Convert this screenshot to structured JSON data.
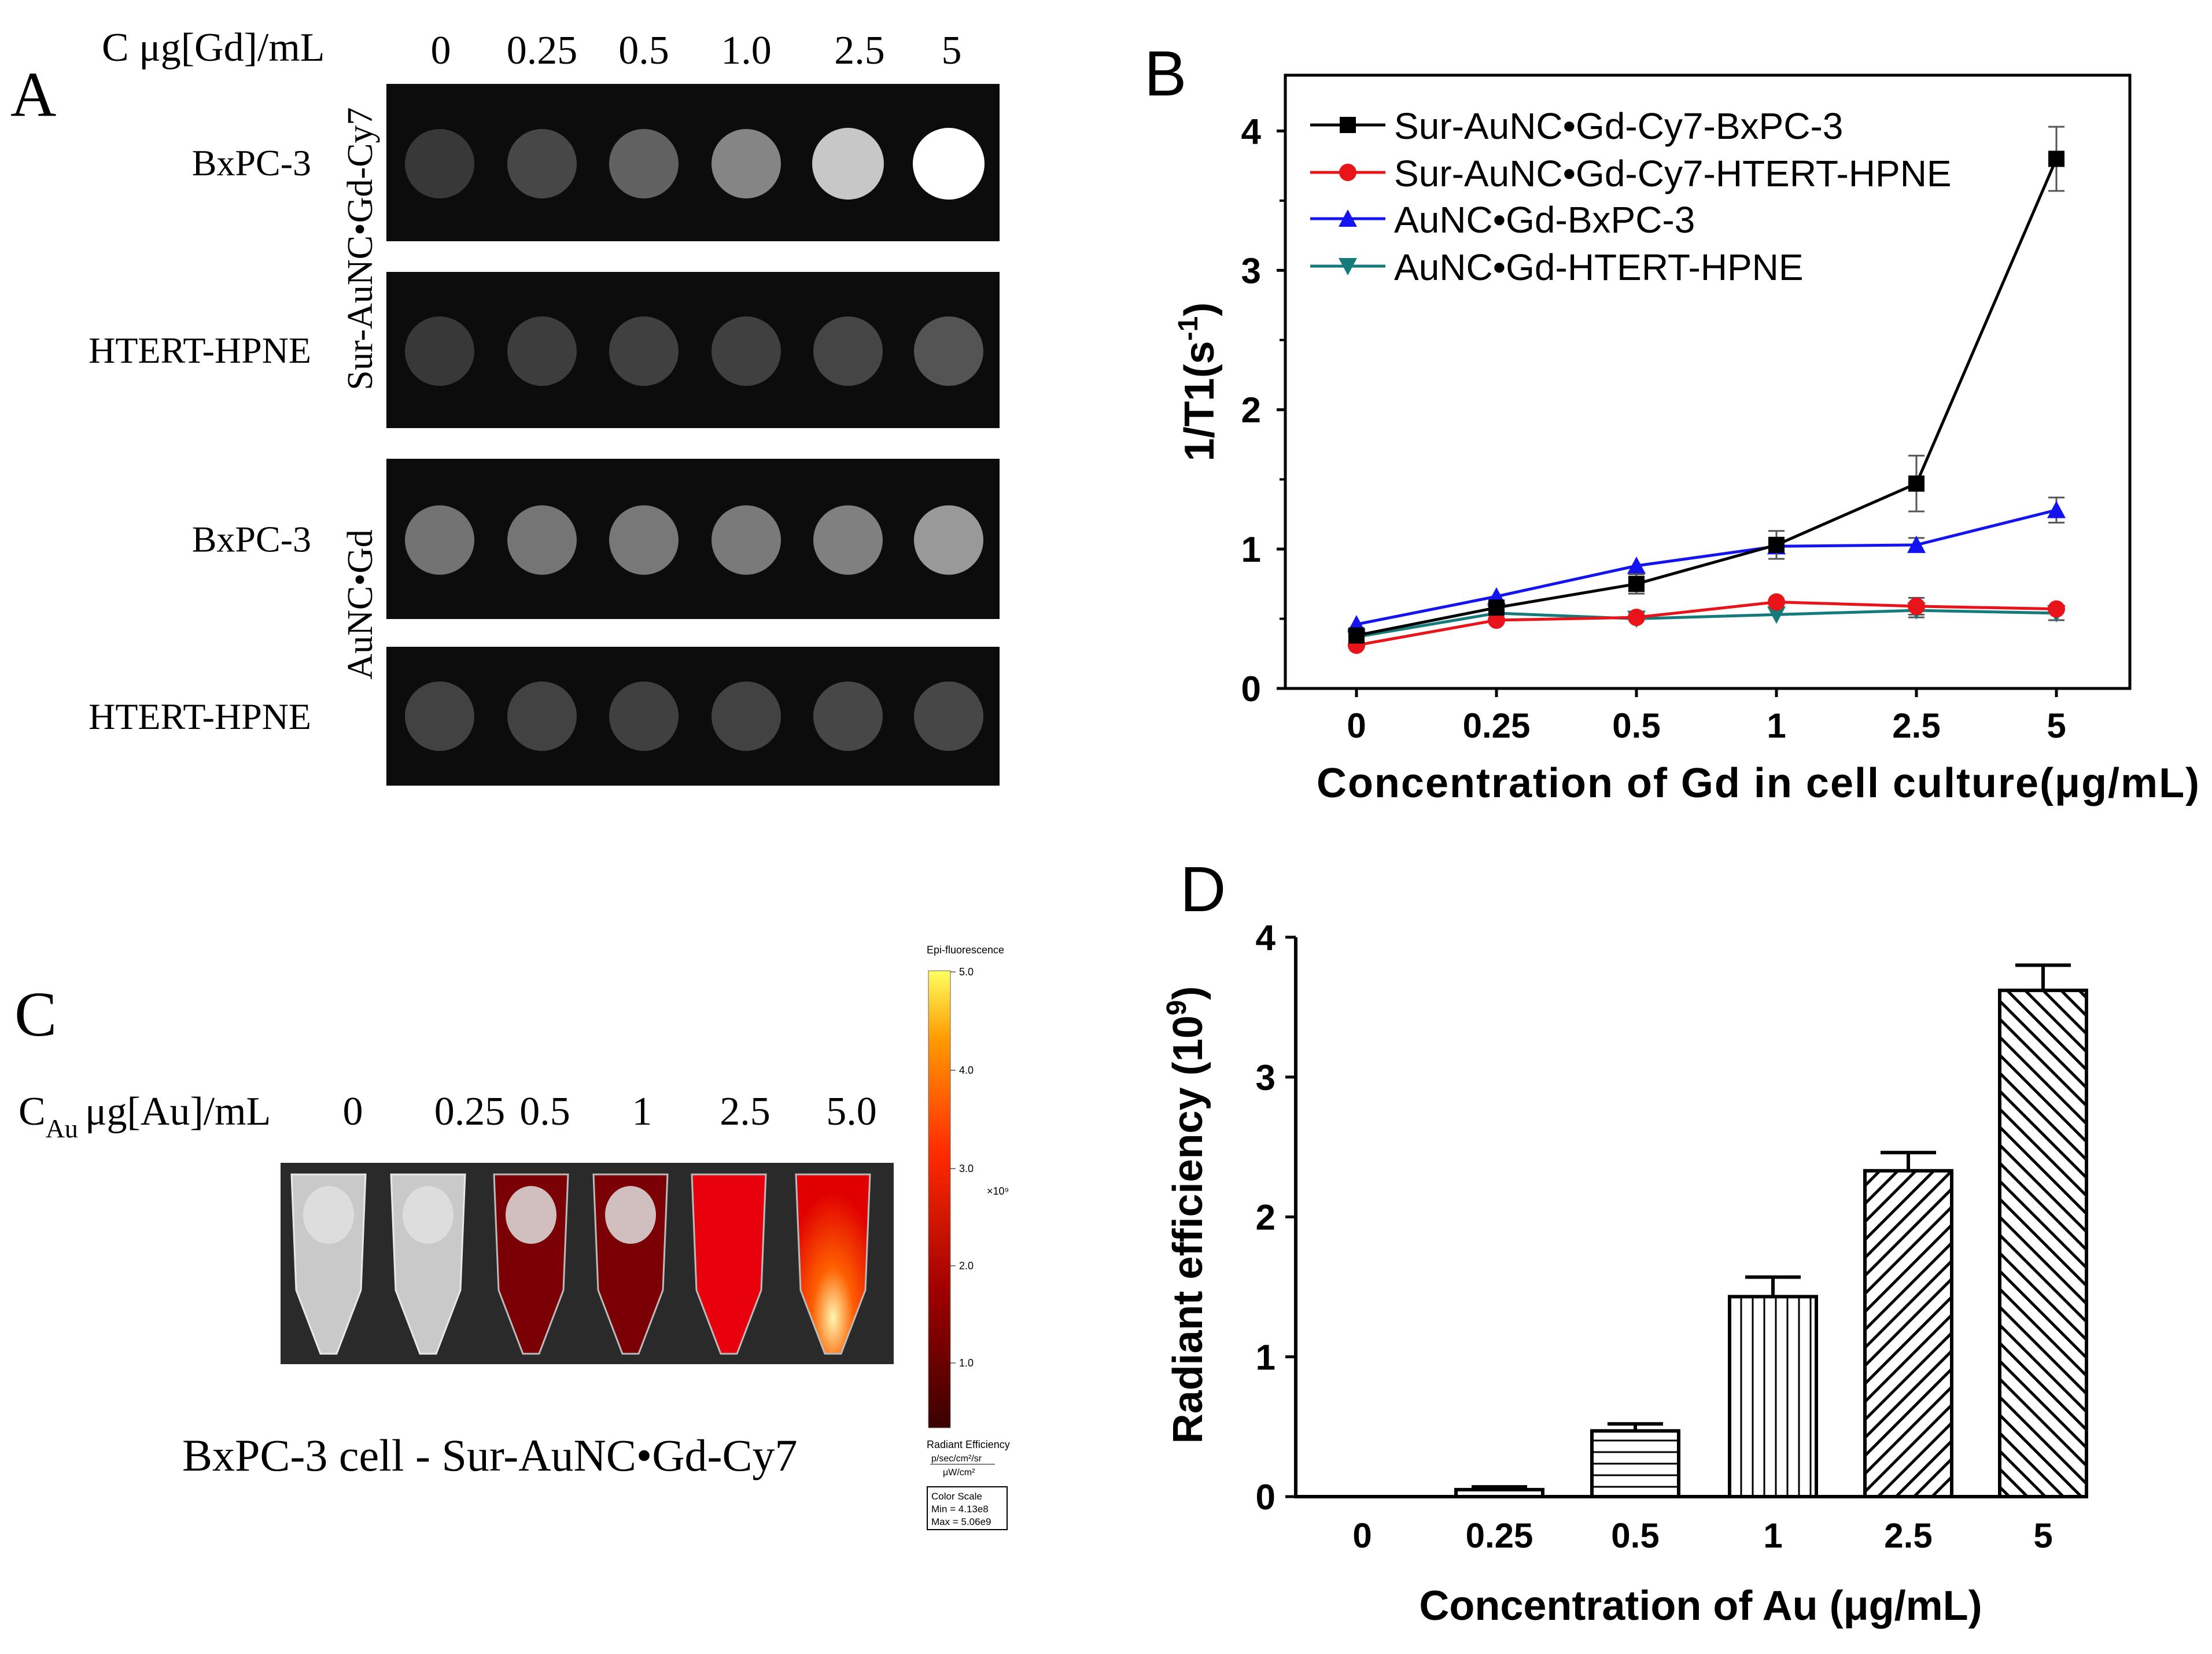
{
  "panels": {
    "A": {
      "letter": "A",
      "conc_label": "C μg[Gd]/mL",
      "conc_values": [
        "0",
        "0.25",
        "0.5",
        "1.0",
        "2.5",
        "5"
      ],
      "group_labels": [
        "Sur-AuNC•Gd-Cy7",
        "AuNC•Gd"
      ],
      "rows": [
        {
          "label": "BxPC-3",
          "intensity": [
            0.22,
            0.28,
            0.38,
            0.52,
            0.78,
            1.0
          ]
        },
        {
          "label": "HTERT-HPNE",
          "intensity": [
            0.22,
            0.24,
            0.25,
            0.25,
            0.27,
            0.33
          ]
        },
        {
          "label": "BxPC-3",
          "intensity": [
            0.45,
            0.46,
            0.47,
            0.48,
            0.5,
            0.6
          ]
        },
        {
          "label": "HTERT-HPNE",
          "intensity": [
            0.26,
            0.26,
            0.25,
            0.26,
            0.28,
            0.28
          ]
        }
      ]
    },
    "B": {
      "letter": "B"
    },
    "C": {
      "letter": "C",
      "conc_label_main": "C",
      "conc_label_sub": "Au",
      "conc_label_unit": "μg[Au]/mL",
      "conc_values": [
        "0",
        "0.25",
        "0.5",
        "1",
        "2.5",
        "5.0"
      ],
      "caption": "BxPC-3 cell - Sur-AuNC•Gd-Cy7",
      "scale_title": "Epi-fluorescence",
      "scale_ticks": [
        "5.0",
        "4.0",
        "3.0",
        "2.0",
        "1.0"
      ],
      "scale_multiplier": "×10⁹",
      "scale_unit_title": "Radiant Efficiency",
      "scale_unit_num": "p/sec/cm²/sr",
      "scale_unit_den": "μW/cm²",
      "color_scale_title": "Color Scale",
      "color_scale_min": "Min = 4.13e8",
      "color_scale_max": "Max = 5.06e9",
      "tube_signal": [
        0.0,
        0.05,
        0.45,
        0.55,
        0.85,
        1.0
      ]
    },
    "D": {
      "letter": "D"
    }
  },
  "colors": {
    "black": "#000000",
    "red": "#e8141a",
    "blue": "#1414f0",
    "teal": "#157a7a"
  },
  "chart_data": [
    {
      "id": "B",
      "type": "line",
      "categories": [
        "0",
        "0.25",
        "0.5",
        "1",
        "2.5",
        "5"
      ],
      "xlabel": "Concentration of Gd in cell culture(μg/mL)",
      "ylabel": "1/T1(s",
      "ylabel_sup": "-1",
      "ylabel_close": ")",
      "ylim": [
        0,
        4.4
      ],
      "yticks": [
        0,
        1,
        2,
        3,
        4
      ],
      "legend_position": "top-left",
      "series": [
        {
          "name": "Sur-AuNC•Gd-Cy7-BxPC-3",
          "marker": "square",
          "color": "#000000",
          "values": [
            0.38,
            0.58,
            0.75,
            1.03,
            1.47,
            3.8
          ],
          "errors": [
            0.0,
            0.0,
            0.07,
            0.1,
            0.2,
            0.23
          ]
        },
        {
          "name": "Sur-AuNC•Gd-Cy7-HTERT-HPNE",
          "marker": "circle",
          "color": "#e8141a",
          "values": [
            0.31,
            0.49,
            0.51,
            0.62,
            0.59,
            0.57
          ],
          "errors": [
            0.0,
            0.0,
            0.0,
            0.0,
            0.06,
            0.0
          ]
        },
        {
          "name": "AuNC•Gd-BxPC-3",
          "marker": "triangle-up",
          "color": "#1414f0",
          "values": [
            0.46,
            0.66,
            0.88,
            1.02,
            1.03,
            1.28
          ],
          "errors": [
            0.0,
            0.0,
            0.0,
            0.0,
            0.05,
            0.09
          ]
        },
        {
          "name": "AuNC•Gd-HTERT-HPNE",
          "marker": "triangle-down",
          "color": "#157a7a",
          "values": [
            0.37,
            0.54,
            0.5,
            0.53,
            0.56,
            0.54
          ],
          "errors": [
            0.0,
            0.0,
            0.0,
            0.0,
            0.05,
            0.05
          ]
        }
      ]
    },
    {
      "id": "D",
      "type": "bar",
      "categories": [
        "0",
        "0.25",
        "0.5",
        "1",
        "2.5",
        "5"
      ],
      "values": [
        0.0,
        0.05,
        0.47,
        1.43,
        2.33,
        3.62
      ],
      "errors": [
        0.0,
        0.02,
        0.05,
        0.14,
        0.13,
        0.18
      ],
      "patterns": [
        "none",
        "none",
        "horizontal",
        "vertical",
        "diag-right",
        "diag-left"
      ],
      "xlabel": "Concentration of Au (μg/mL)",
      "ylabel": "Radiant efficiency (10",
      "ylabel_sup": "9",
      "ylabel_close": ")",
      "ylim": [
        0,
        4
      ],
      "yticks": [
        0,
        1,
        2,
        3,
        4
      ]
    }
  ]
}
